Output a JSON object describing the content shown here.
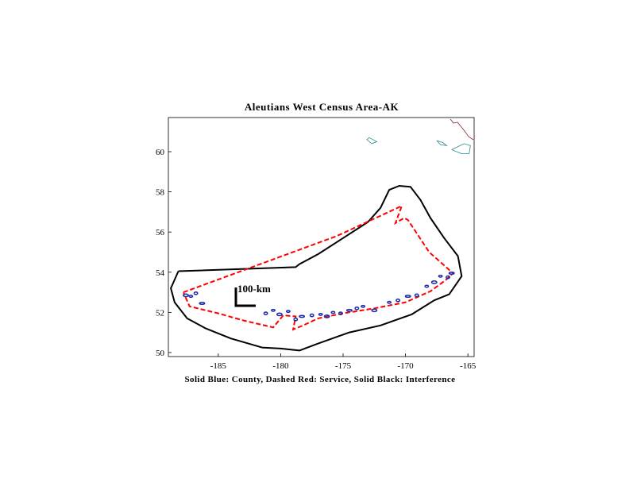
{
  "figure": {
    "title": "Aleutians West Census Area-AK",
    "caption": "Solid Blue: County, Dashed Red: Service, Solid Black: Interference",
    "scale_bar_label": "100-km"
  },
  "chart_data": {
    "type": "map",
    "title": "Aleutians West Census Area-AK",
    "xlim": [
      -189,
      -164.5
    ],
    "ylim": [
      49.8,
      61.7
    ],
    "x_ticks": [
      -185,
      -180,
      -175,
      -170,
      -165
    ],
    "x_tick_labels": [
      "-185",
      "-180",
      "-175",
      "-170",
      "-165"
    ],
    "y_ticks": [
      50,
      52,
      54,
      56,
      58,
      60
    ],
    "y_tick_labels": [
      "50",
      "52",
      "54",
      "56",
      "58",
      "60"
    ],
    "grid": false,
    "colors": {
      "county": "#1a2aa8",
      "service": "#ff0000",
      "interference": "#000000",
      "coast": "#2a8a8a",
      "border": "#8a2a2a"
    },
    "interference_contour": [
      [
        -188.2,
        54.05
      ],
      [
        -178.8,
        54.25
      ],
      [
        -178.5,
        54.4
      ],
      [
        -177,
        54.9
      ],
      [
        -175,
        55.7
      ],
      [
        -173,
        56.5
      ],
      [
        -172,
        57.2
      ],
      [
        -171.3,
        58.1
      ],
      [
        -170.5,
        58.3
      ],
      [
        -169.6,
        58.25
      ],
      [
        -168.8,
        57.6
      ],
      [
        -168,
        56.7
      ],
      [
        -166.9,
        55.7
      ],
      [
        -165.8,
        54.8
      ],
      [
        -165.5,
        53.8
      ],
      [
        -166.5,
        52.9
      ],
      [
        -167.7,
        52.6
      ],
      [
        -169.5,
        51.9
      ],
      [
        -172,
        51.35
      ],
      [
        -174.5,
        51
      ],
      [
        -177,
        50.45
      ],
      [
        -178.5,
        50.1
      ],
      [
        -180,
        50.2
      ],
      [
        -181.5,
        50.25
      ],
      [
        -184,
        50.7
      ],
      [
        -186,
        51.2
      ],
      [
        -187.5,
        51.7
      ],
      [
        -188.5,
        52.5
      ],
      [
        -188.8,
        53.2
      ],
      [
        -188.2,
        54.05
      ]
    ],
    "service_contour": [
      [
        -187.8,
        53
      ],
      [
        -175.5,
        55.8
      ],
      [
        -170.3,
        57.3
      ],
      [
        -170.8,
        56.45
      ],
      [
        -170.1,
        56.7
      ],
      [
        -169.8,
        56.6
      ],
      [
        -168.1,
        55
      ],
      [
        -166.2,
        53.95
      ],
      [
        -166.8,
        53.6
      ],
      [
        -168,
        53.05
      ],
      [
        -170,
        52.5
      ],
      [
        -172.5,
        52.2
      ],
      [
        -175,
        51.95
      ],
      [
        -177,
        51.7
      ],
      [
        -178.2,
        51.35
      ],
      [
        -179,
        51.15
      ],
      [
        -178.8,
        51.8
      ],
      [
        -179.8,
        51.85
      ],
      [
        -180.6,
        51.25
      ],
      [
        -183,
        51.6
      ],
      [
        -185,
        51.95
      ],
      [
        -187.3,
        52.3
      ],
      [
        -187.8,
        53
      ]
    ],
    "county_islands": [
      [
        -187.6,
        52.85
      ],
      [
        -187.2,
        52.8
      ],
      [
        -186.8,
        52.95
      ],
      [
        -186.3,
        52.45
      ],
      [
        -181.2,
        51.95
      ],
      [
        -180.6,
        52.1
      ],
      [
        -180.1,
        51.9
      ],
      [
        -179.4,
        52.05
      ],
      [
        -178.8,
        51.65
      ],
      [
        -178.3,
        51.8
      ],
      [
        -177.5,
        51.85
      ],
      [
        -176.8,
        51.9
      ],
      [
        -176.3,
        51.8
      ],
      [
        -175.8,
        52
      ],
      [
        -175.2,
        51.95
      ],
      [
        -174.5,
        52.1
      ],
      [
        -173.9,
        52.2
      ],
      [
        -173.4,
        52.3
      ],
      [
        -172.5,
        52.1
      ],
      [
        -171.3,
        52.5
      ],
      [
        -170.6,
        52.6
      ],
      [
        -169.8,
        52.8
      ],
      [
        -169.1,
        52.85
      ],
      [
        -168.3,
        53.3
      ],
      [
        -167.7,
        53.5
      ],
      [
        -167.2,
        53.8
      ],
      [
        -166.6,
        53.75
      ],
      [
        -166.3,
        53.95
      ]
    ],
    "alaska_coast_fragments": [
      [
        [
          -167.5,
          60.55
        ],
        [
          -167.0,
          60.45
        ],
        [
          -166.7,
          60.3
        ],
        [
          -167.2,
          60.35
        ],
        [
          -167.5,
          60.55
        ]
      ],
      [
        [
          -166.3,
          60.1
        ],
        [
          -165.3,
          60.4
        ],
        [
          -164.8,
          60.3
        ],
        [
          -164.9,
          59.9
        ],
        [
          -165.5,
          59.9
        ],
        [
          -166.3,
          60.1
        ]
      ],
      [
        [
          -172.9,
          60.7
        ],
        [
          -172.3,
          60.5
        ],
        [
          -172.7,
          60.4
        ],
        [
          -173.1,
          60.6
        ],
        [
          -172.9,
          60.7
        ]
      ]
    ],
    "xlabel": "Solid Blue: County, Dashed Red: Service, Solid Black: Interference"
  }
}
